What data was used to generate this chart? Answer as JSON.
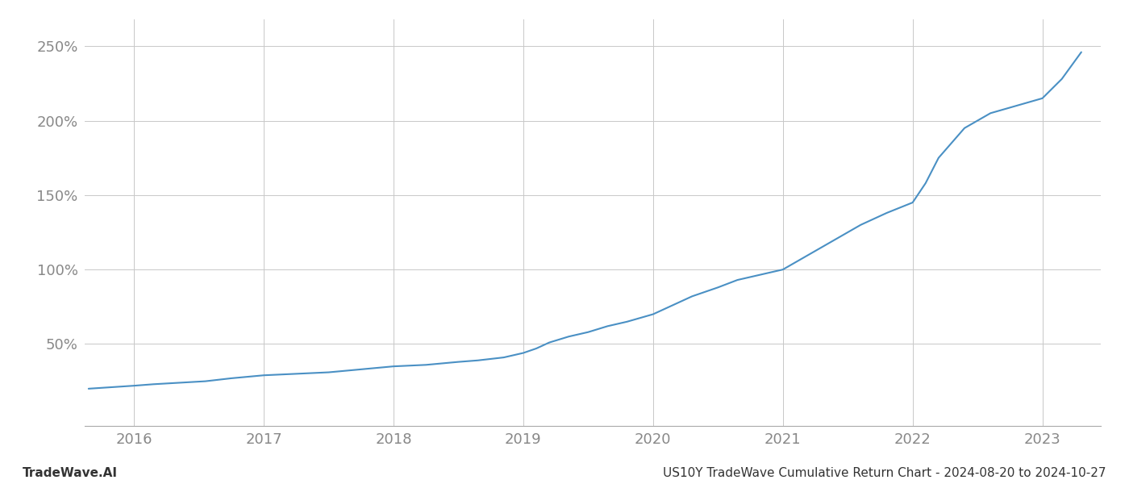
{
  "title": "US10Y TradeWave Cumulative Return Chart - 2024-08-20 to 2024-10-27",
  "watermark_left": "TradeWave.AI",
  "line_color": "#4a90c4",
  "background_color": "#ffffff",
  "grid_color": "#c8c8c8",
  "x_years": [
    2016,
    2017,
    2018,
    2019,
    2020,
    2021,
    2022,
    2023
  ],
  "xlim": [
    2015.62,
    2023.45
  ],
  "ylim": [
    -5,
    268
  ],
  "yticks": [
    50,
    100,
    150,
    200,
    250
  ],
  "x_data": [
    2015.65,
    2016.0,
    2016.15,
    2016.35,
    2016.55,
    2016.75,
    2017.0,
    2017.25,
    2017.5,
    2017.75,
    2018.0,
    2018.25,
    2018.5,
    2018.65,
    2018.85,
    2019.0,
    2019.1,
    2019.2,
    2019.35,
    2019.5,
    2019.65,
    2019.8,
    2020.0,
    2020.15,
    2020.3,
    2020.5,
    2020.65,
    2020.8,
    2021.0,
    2021.2,
    2021.4,
    2021.6,
    2021.8,
    2022.0,
    2022.1,
    2022.2,
    2022.4,
    2022.6,
    2022.8,
    2023.0,
    2023.15,
    2023.3
  ],
  "y_data": [
    20,
    22,
    23,
    24,
    25,
    27,
    29,
    30,
    31,
    33,
    35,
    36,
    38,
    39,
    41,
    44,
    47,
    51,
    55,
    58,
    62,
    65,
    70,
    76,
    82,
    88,
    93,
    96,
    100,
    110,
    120,
    130,
    138,
    145,
    158,
    175,
    195,
    205,
    210,
    215,
    228,
    246
  ],
  "font_family": "DejaVu Sans",
  "tick_color": "#888888",
  "tick_fontsize": 13,
  "footer_fontsize": 11
}
